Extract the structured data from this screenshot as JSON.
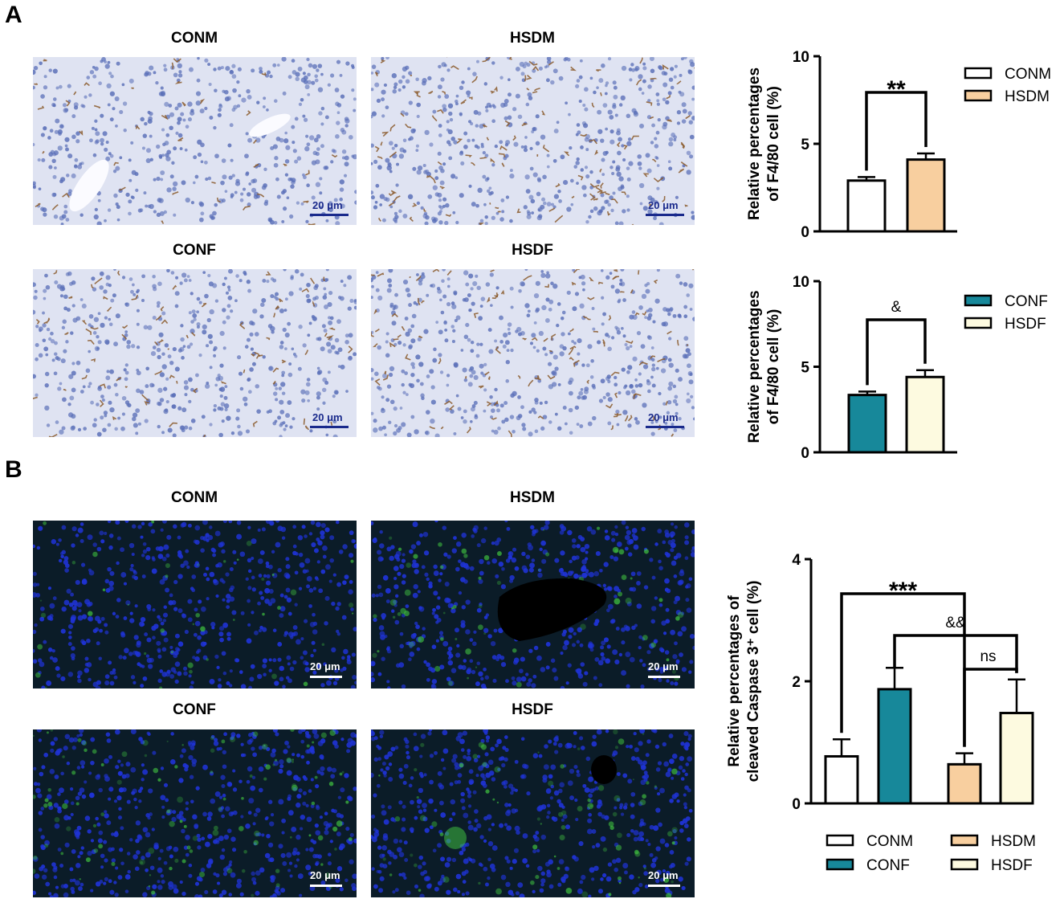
{
  "panels": {
    "a": {
      "letter": "A",
      "titles": [
        "CONM",
        "HSDM",
        "CONF",
        "HSDF"
      ],
      "scale_label": "20 μm",
      "stain_color": "#8b5a2b",
      "nuclei_color": "#5a6fb8",
      "background_color": "#dfe3f2"
    },
    "b": {
      "letter": "B",
      "titles": [
        "CONM",
        "HSDM",
        "CONF",
        "HSDF"
      ],
      "scale_label": "20 μm",
      "nuclei_color": "#1f33d6",
      "signal_color": "#3fbf3f",
      "background_color": "#0b1c28"
    }
  },
  "colors": {
    "CONM": "#ffffff",
    "HSDM": "#f8cf9f",
    "CONF": "#17889a",
    "HSDF": "#fdfae0"
  },
  "chart_data": [
    {
      "type": "bar",
      "ylabel_lines": [
        "Relative percentages",
        "of F4/80 cell (%)"
      ],
      "ylim": [
        0,
        10
      ],
      "yticks": [
        0,
        5,
        10
      ],
      "categories": [
        "CONM",
        "HSDM"
      ],
      "values": [
        2.9,
        4.1
      ],
      "errors": [
        0.2,
        0.35
      ],
      "legend": [
        "CONM",
        "HSDM"
      ],
      "significance": [
        {
          "between": [
            "CONM",
            "HSDM"
          ],
          "label": "**"
        }
      ]
    },
    {
      "type": "bar",
      "ylabel_lines": [
        "Relative percentages",
        "of F4/80 cell (%)"
      ],
      "ylim": [
        0,
        10
      ],
      "yticks": [
        0,
        5,
        10
      ],
      "categories": [
        "CONF",
        "HSDF"
      ],
      "values": [
        3.35,
        4.4
      ],
      "errors": [
        0.2,
        0.4
      ],
      "legend": [
        "CONF",
        "HSDF"
      ],
      "significance": [
        {
          "between": [
            "CONF",
            "HSDF"
          ],
          "label": "&"
        }
      ]
    },
    {
      "type": "bar",
      "ylabel_lines": [
        "Relative percentages of",
        "cleaved Caspase 3⁺ cell (%)"
      ],
      "ylim": [
        0,
        4
      ],
      "yticks": [
        0,
        2,
        4
      ],
      "categories": [
        "CONM",
        "CONF",
        "HSDM",
        "HSDF"
      ],
      "values": [
        0.77,
        1.87,
        0.64,
        1.48
      ],
      "errors": [
        0.28,
        0.35,
        0.18,
        0.55
      ],
      "legend": [
        "CONM",
        "CONF",
        "HSDM",
        "HSDF"
      ],
      "significance": [
        {
          "between": [
            "CONM",
            "HSDM"
          ],
          "label": "***"
        },
        {
          "between": [
            "CONF",
            "HSDF"
          ],
          "label": "&&"
        },
        {
          "between": [
            "HSDM",
            "HSDF"
          ],
          "label": "ns"
        }
      ]
    }
  ]
}
